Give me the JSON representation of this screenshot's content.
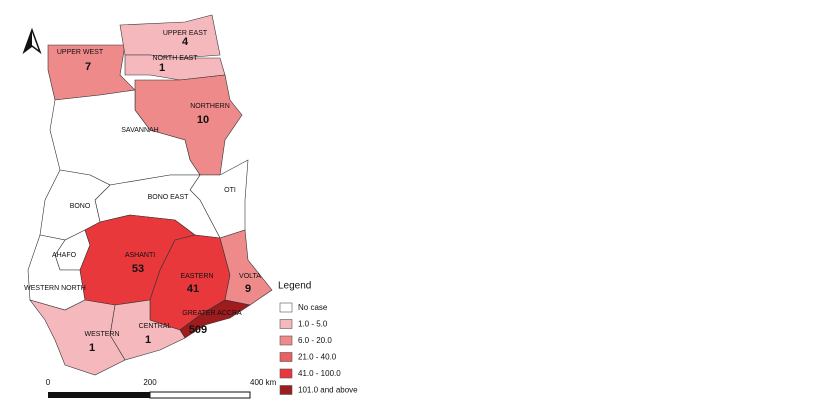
{
  "regions": [
    {
      "name": "UPPER WEST",
      "cases": 7,
      "color": "#ee8a8a"
    },
    {
      "name": "UPPER EAST",
      "cases": 4,
      "color": "#f4b8bd"
    },
    {
      "name": "NORTH EAST",
      "cases": 1,
      "color": "#f4b8bd"
    },
    {
      "name": "NORTHERN",
      "cases": 10,
      "color": "#ee8a8a"
    },
    {
      "name": "SAVANNAH",
      "color": "#ffffff"
    },
    {
      "name": "OTI",
      "color": "#ffffff"
    },
    {
      "name": "BONO EAST",
      "color": "#ffffff"
    },
    {
      "name": "BONO",
      "color": "#ffffff"
    },
    {
      "name": "AHAFO",
      "color": "#ffffff"
    },
    {
      "name": "WESTERN NORTH",
      "color": "#ffffff"
    },
    {
      "name": "ASHANTI",
      "cases": 53,
      "color": "#e8383b"
    },
    {
      "name": "EASTERN",
      "cases": 41,
      "color": "#e8383b"
    },
    {
      "name": "VOLTA",
      "cases": 9,
      "color": "#ee8a8a"
    },
    {
      "name": "GREATER ACCRA",
      "cases": 509,
      "color": "#9e1b1e"
    },
    {
      "name": "CENTRAL",
      "cases": 1,
      "color": "#f4b8bd"
    },
    {
      "name": "WESTERN",
      "cases": 1,
      "color": "#f4b8bd"
    }
  ],
  "legend": {
    "title": "Legend",
    "items": [
      {
        "label": "No case",
        "color": "#ffffff"
      },
      {
        "label": "1.0 - 5.0",
        "color": "#f4b8bd"
      },
      {
        "label": "6.0 - 20.0",
        "color": "#ee8a8a"
      },
      {
        "label": "21.0 - 40.0",
        "color": "#ec5f60"
      },
      {
        "label": "41.0 - 100.0",
        "color": "#e8383b"
      },
      {
        "label": "101.0  and above",
        "color": "#9e1b1e"
      }
    ]
  },
  "scale_bar": {
    "labels": [
      "0",
      "200",
      "400 km"
    ]
  }
}
